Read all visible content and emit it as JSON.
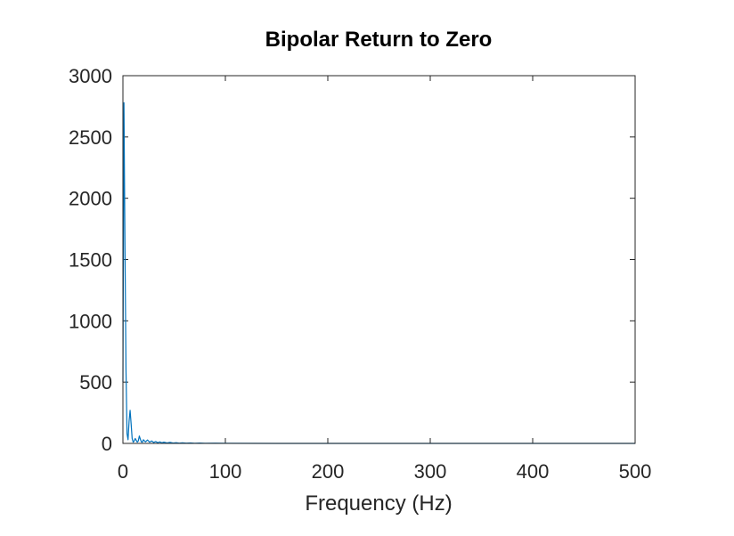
{
  "chart_data": {
    "type": "line",
    "title": "Bipolar Return to Zero",
    "xlabel": "Frequency (Hz)",
    "ylabel": "",
    "xlim": [
      0,
      500
    ],
    "ylim": [
      0,
      3000
    ],
    "xticks": [
      0,
      100,
      200,
      300,
      400,
      500
    ],
    "yticks": [
      0,
      500,
      1000,
      1500,
      2000,
      2500,
      3000
    ],
    "grid": false,
    "box": true,
    "series": [
      {
        "color": "#0072bd",
        "x": [
          0,
          1,
          2,
          3,
          4,
          5,
          6,
          7,
          8,
          9,
          10,
          11,
          12,
          13,
          14,
          15,
          16,
          17,
          18,
          19,
          20,
          22,
          24,
          26,
          28,
          30,
          32,
          34,
          36,
          38,
          40,
          43,
          46,
          49,
          52,
          55,
          58,
          62,
          66,
          70,
          75,
          80,
          90,
          100,
          150,
          200,
          300,
          400,
          500
        ],
        "y": [
          500,
          2780,
          1600,
          600,
          80,
          30,
          180,
          270,
          160,
          40,
          10,
          20,
          40,
          25,
          10,
          20,
          60,
          35,
          12,
          10,
          30,
          12,
          28,
          10,
          20,
          8,
          15,
          6,
          12,
          5,
          10,
          4,
          8,
          3,
          6,
          2,
          5,
          2,
          4,
          1,
          3,
          1,
          2,
          1,
          0,
          0,
          0,
          0,
          0
        ]
      }
    ]
  }
}
